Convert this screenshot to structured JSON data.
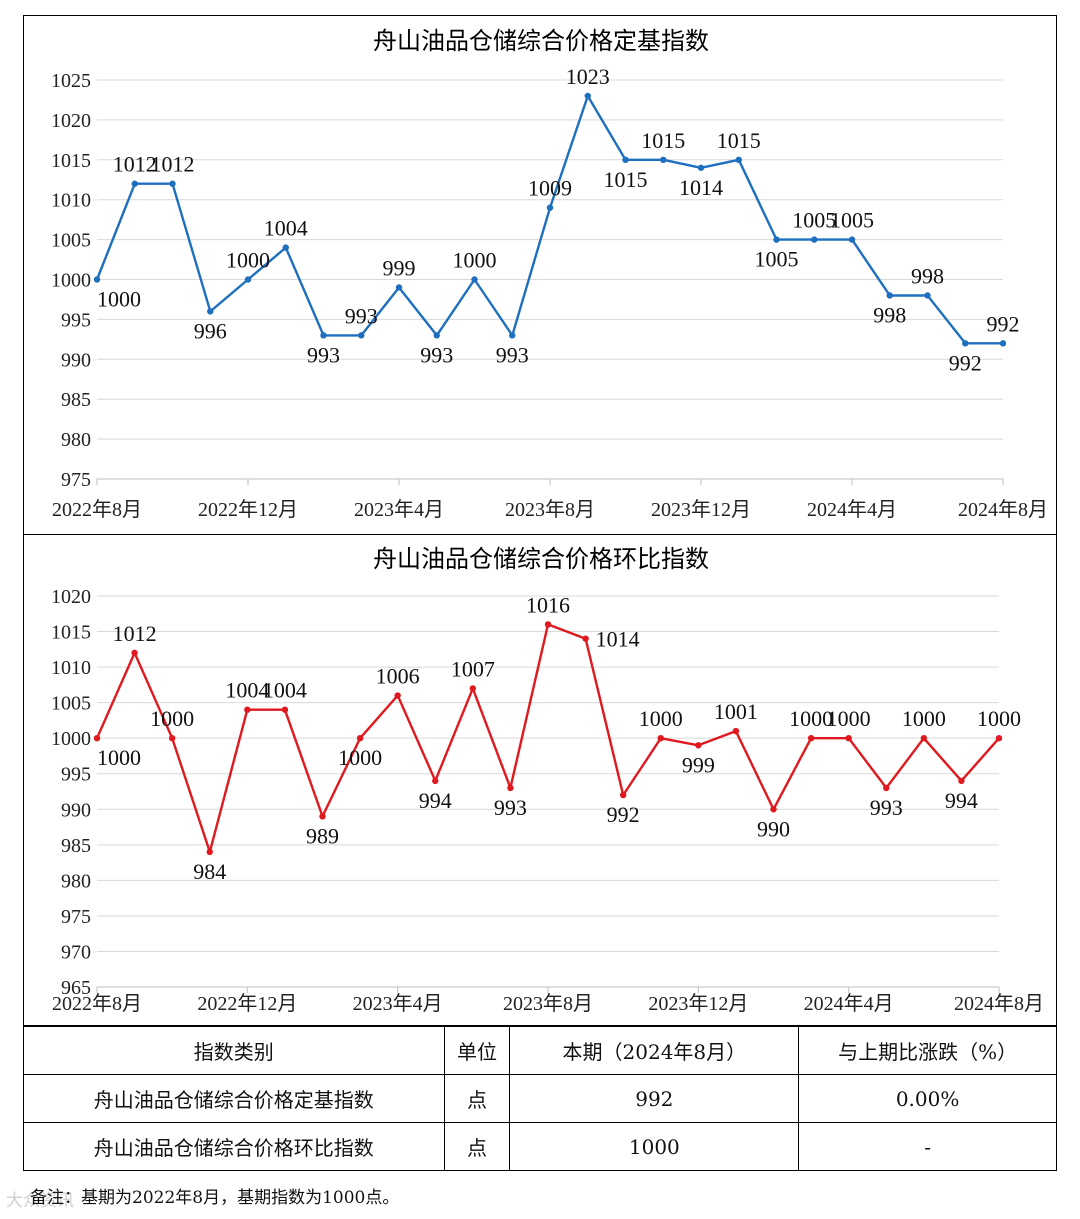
{
  "chart_data": [
    {
      "type": "line",
      "title": "舟山油品仓储综合价格定基指数",
      "color": "#1f6fbf",
      "x": [
        "2022年8月",
        "2022年9月",
        "2022年10月",
        "2022年11月",
        "2022年12月",
        "2023年1月",
        "2023年2月",
        "2023年3月",
        "2023年4月",
        "2023年5月",
        "2023年6月",
        "2023年7月",
        "2023年8月",
        "2023年9月",
        "2023年10月",
        "2023年11月",
        "2023年12月",
        "2024年1月",
        "2024年2月",
        "2024年3月",
        "2024年4月",
        "2024年5月",
        "2024年6月",
        "2024年7月",
        "2024年8月"
      ],
      "values": [
        1000,
        1012,
        1012,
        996,
        1000,
        1004,
        993,
        993,
        999,
        993,
        1000,
        993,
        1009,
        1023,
        1015,
        1015,
        1014,
        1015,
        1005,
        1005,
        1005,
        998,
        998,
        992,
        992
      ],
      "labels": [
        "1000",
        "1012",
        "1012",
        "996",
        "1000",
        "1004",
        "993",
        "993",
        "999",
        "993",
        "1000",
        "993",
        "1009",
        "1023",
        "1015",
        "1015",
        "1014",
        "1015",
        "1005",
        "1005",
        "1005",
        "998",
        "998",
        "992",
        "992"
      ],
      "label_pos": [
        "below",
        "above",
        "above",
        "below",
        "above",
        "above",
        "below",
        "above",
        "above",
        "below",
        "above",
        "below",
        "above",
        "above",
        "below",
        "above",
        "below",
        "above",
        "below",
        "above",
        "above",
        "below",
        "above",
        "below",
        "above"
      ],
      "x_tick_labels": [
        "2022年8月",
        "2022年12月",
        "2023年4月",
        "2023年8月",
        "2023年12月",
        "2024年4月",
        "2024年8月"
      ],
      "y_ticks": [
        975,
        980,
        985,
        990,
        995,
        1000,
        1005,
        1010,
        1015,
        1020,
        1025
      ],
      "ylim": [
        975,
        1025
      ],
      "grid": true
    },
    {
      "type": "line",
      "title": "舟山油品仓储综合价格环比指数",
      "color": "#e0191f",
      "x": [
        "2022年8月",
        "2022年9月",
        "2022年10月",
        "2022年11月",
        "2022年12月",
        "2023年1月",
        "2023年2月",
        "2023年3月",
        "2023年4月",
        "2023年5月",
        "2023年6月",
        "2023年7月",
        "2023年8月",
        "2023年9月",
        "2023年10月",
        "2023年11月",
        "2023年12月",
        "2024年1月",
        "2024年2月",
        "2024年3月",
        "2024年4月",
        "2024年5月",
        "2024年6月",
        "2024年7月",
        "2024年8月"
      ],
      "values": [
        1000,
        1012,
        1000,
        984,
        1004,
        1004,
        989,
        1000,
        1006,
        994,
        1007,
        993,
        1016,
        1014,
        992,
        1000,
        999,
        1001,
        990,
        1000,
        1000,
        993,
        1000,
        994,
        1000
      ],
      "labels": [
        "1000",
        "1012",
        "1000",
        "984",
        "1004",
        "1004",
        "989",
        "1000",
        "1006",
        "994",
        "1007",
        "993",
        "1016",
        "1014",
        "992",
        "1000",
        "999",
        "1001",
        "990",
        "1000",
        "1000",
        "993",
        "1000",
        "994",
        "1000"
      ],
      "label_pos": [
        "below",
        "above",
        "above",
        "below",
        "above",
        "above",
        "below",
        "below",
        "above",
        "below",
        "above",
        "below",
        "above",
        "right",
        "below",
        "above",
        "below",
        "above",
        "below",
        "above",
        "above",
        "below",
        "above",
        "below",
        "above"
      ],
      "x_tick_labels": [
        "2022年8月",
        "2022年12月",
        "2023年4月",
        "2023年8月",
        "2023年12月",
        "2024年4月",
        "2024年8月"
      ],
      "y_ticks": [
        965,
        970,
        975,
        980,
        985,
        990,
        995,
        1000,
        1005,
        1010,
        1015,
        1020
      ],
      "ylim": [
        965,
        1020
      ],
      "grid": true
    }
  ],
  "table": {
    "headers": [
      "指数类别",
      "单位",
      "本期（2024年8月）",
      "与上期比涨跌（%）"
    ],
    "rows": [
      [
        "舟山油品仓储综合价格定基指数",
        "点",
        "992",
        "0.00%"
      ],
      [
        "舟山油品仓储综合价格环比指数",
        "点",
        "1000",
        "-"
      ]
    ]
  },
  "note": "备注：基期为2022年8月，基期指数为1000点。",
  "watermark": "大众资讯"
}
